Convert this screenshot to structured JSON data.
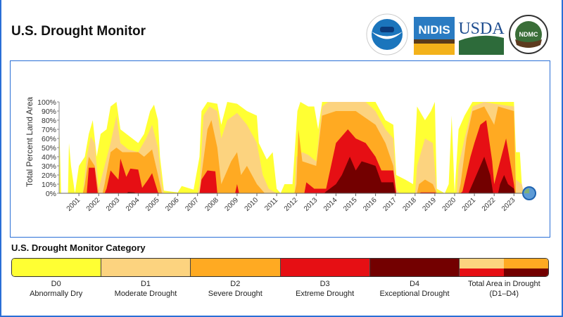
{
  "header": {
    "title": "U.S. Drought Monitor",
    "logos": [
      "NOAA",
      "NIDIS",
      "USDA",
      "NDMC"
    ]
  },
  "colors": {
    "D0": "#ffff33",
    "D1": "#fcd37f",
    "D2": "#ffaa22",
    "D3": "#e60f14",
    "D4": "#730000",
    "frame": "#2a6fd6"
  },
  "chart_data": {
    "type": "area",
    "ylabel": "Total Percent Land Area",
    "xlabel": "",
    "ylim": [
      0,
      100
    ],
    "xlim": [
      2000,
      2023.6
    ],
    "yticks": [
      "0%",
      "10%",
      "20%",
      "30%",
      "40%",
      "50%",
      "60%",
      "70%",
      "80%",
      "90%",
      "100%"
    ],
    "xticks": [
      "2001",
      "2002",
      "2003",
      "2004",
      "2005",
      "2006",
      "2007",
      "2008",
      "2009",
      "2010",
      "2011",
      "2012",
      "2013",
      "2014",
      "2015",
      "2016",
      "2017",
      "2018",
      "2019",
      "2020",
      "2021",
      "2022",
      "2023"
    ],
    "grid": false,
    "stacking": "cumulative (each category includes more severe ones)",
    "series": [
      {
        "name": "D0",
        "points": [
          [
            2000,
            80
          ],
          [
            2000.1,
            0
          ],
          [
            2000.45,
            0
          ],
          [
            2000.5,
            55
          ],
          [
            2000.6,
            30
          ],
          [
            2000.8,
            0
          ],
          [
            2001,
            30
          ],
          [
            2001.3,
            40
          ],
          [
            2001.5,
            65
          ],
          [
            2001.7,
            80
          ],
          [
            2001.9,
            40
          ],
          [
            2002.1,
            65
          ],
          [
            2002.4,
            70
          ],
          [
            2002.6,
            95
          ],
          [
            2002.9,
            100
          ],
          [
            2003.1,
            70
          ],
          [
            2003.4,
            65
          ],
          [
            2003.7,
            60
          ],
          [
            2004,
            55
          ],
          [
            2004.3,
            65
          ],
          [
            2004.6,
            90
          ],
          [
            2004.8,
            97
          ],
          [
            2005,
            80
          ],
          [
            2005.1,
            40
          ],
          [
            2005.3,
            3
          ],
          [
            2005.6,
            2
          ],
          [
            2006,
            1
          ],
          [
            2006.2,
            8
          ],
          [
            2006.5,
            6
          ],
          [
            2006.8,
            4
          ],
          [
            2007.1,
            40
          ],
          [
            2007.2,
            90
          ],
          [
            2007.5,
            100
          ],
          [
            2008,
            98
          ],
          [
            2008.2,
            75
          ],
          [
            2008.5,
            100
          ],
          [
            2009,
            98
          ],
          [
            2009.5,
            90
          ],
          [
            2010,
            85
          ],
          [
            2010.1,
            55
          ],
          [
            2010.5,
            37
          ],
          [
            2010.8,
            45
          ],
          [
            2011,
            5
          ],
          [
            2011.2,
            0
          ],
          [
            2011.4,
            10
          ],
          [
            2011.8,
            10
          ],
          [
            2012.05,
            90
          ],
          [
            2012.2,
            100
          ],
          [
            2012.6,
            95
          ],
          [
            2012.9,
            95
          ],
          [
            2013.1,
            70
          ],
          [
            2013.3,
            100
          ],
          [
            2016,
            100
          ],
          [
            2016.5,
            80
          ],
          [
            2016.9,
            75
          ],
          [
            2017.05,
            20
          ],
          [
            2017.5,
            15
          ],
          [
            2017.9,
            10
          ],
          [
            2018.1,
            95
          ],
          [
            2018.5,
            80
          ],
          [
            2018.8,
            90
          ],
          [
            2019,
            100
          ],
          [
            2019.1,
            5
          ],
          [
            2019.5,
            0
          ],
          [
            2019.7,
            10
          ],
          [
            2019.85,
            85
          ],
          [
            2020,
            0
          ],
          [
            2020.2,
            70
          ],
          [
            2020.5,
            85
          ],
          [
            2020.9,
            100
          ],
          [
            2023,
            100
          ],
          [
            2023.1,
            45
          ],
          [
            2023.3,
            45
          ],
          [
            2023.4,
            10
          ],
          [
            2023.5,
            0
          ]
        ]
      },
      {
        "name": "D1",
        "points": [
          [
            2001.2,
            0
          ],
          [
            2001.4,
            40
          ],
          [
            2001.6,
            62
          ],
          [
            2001.8,
            55
          ],
          [
            2002,
            5
          ],
          [
            2002.3,
            30
          ],
          [
            2002.6,
            55
          ],
          [
            2002.9,
            85
          ],
          [
            2003.1,
            55
          ],
          [
            2003.5,
            48
          ],
          [
            2004,
            45
          ],
          [
            2004.4,
            60
          ],
          [
            2004.7,
            75
          ],
          [
            2005,
            50
          ],
          [
            2005.2,
            10
          ],
          [
            2005.3,
            0
          ],
          [
            2007,
            0
          ],
          [
            2007.1,
            10
          ],
          [
            2007.3,
            85
          ],
          [
            2007.6,
            95
          ],
          [
            2008,
            90
          ],
          [
            2008.2,
            60
          ],
          [
            2008.5,
            80
          ],
          [
            2009,
            88
          ],
          [
            2009.5,
            75
          ],
          [
            2010,
            55
          ],
          [
            2010.3,
            20
          ],
          [
            2010.6,
            5
          ],
          [
            2011,
            0
          ],
          [
            2011.9,
            0
          ],
          [
            2012,
            40
          ],
          [
            2012.3,
            45
          ],
          [
            2012.6,
            42
          ],
          [
            2013,
            35
          ],
          [
            2013.3,
            95
          ],
          [
            2013.6,
            100
          ],
          [
            2015.5,
            100
          ],
          [
            2016,
            90
          ],
          [
            2016.5,
            70
          ],
          [
            2016.9,
            60
          ],
          [
            2017.05,
            5
          ],
          [
            2017.2,
            0
          ],
          [
            2018,
            0
          ],
          [
            2018.1,
            30
          ],
          [
            2018.5,
            60
          ],
          [
            2018.9,
            55
          ],
          [
            2019.1,
            0
          ],
          [
            2020.1,
            0
          ],
          [
            2020.2,
            30
          ],
          [
            2020.5,
            60
          ],
          [
            2020.9,
            95
          ],
          [
            2021.5,
            100
          ],
          [
            2022,
            98
          ],
          [
            2023,
            95
          ],
          [
            2023.1,
            15
          ],
          [
            2023.4,
            10
          ],
          [
            2023.5,
            0
          ]
        ]
      },
      {
        "name": "D2",
        "points": [
          [
            2001.2,
            0
          ],
          [
            2001.3,
            10
          ],
          [
            2001.5,
            40
          ],
          [
            2001.8,
            30
          ],
          [
            2002,
            0
          ],
          [
            2002.2,
            0
          ],
          [
            2002.3,
            10
          ],
          [
            2002.6,
            45
          ],
          [
            2002.9,
            50
          ],
          [
            2003.2,
            45
          ],
          [
            2004,
            45
          ],
          [
            2004.3,
            40
          ],
          [
            2004.7,
            48
          ],
          [
            2005,
            20
          ],
          [
            2005.2,
            0
          ],
          [
            2007.1,
            0
          ],
          [
            2007.2,
            20
          ],
          [
            2007.5,
            70
          ],
          [
            2007.7,
            80
          ],
          [
            2008,
            50
          ],
          [
            2008.2,
            10
          ],
          [
            2008.7,
            35
          ],
          [
            2009,
            45
          ],
          [
            2009.2,
            20
          ],
          [
            2009.5,
            30
          ],
          [
            2010,
            10
          ],
          [
            2010.4,
            0
          ],
          [
            2011.9,
            0
          ],
          [
            2012,
            10
          ],
          [
            2012.1,
            70
          ],
          [
            2012.3,
            35
          ],
          [
            2013,
            30
          ],
          [
            2013.3,
            85
          ],
          [
            2014,
            90
          ],
          [
            2015,
            90
          ],
          [
            2016,
            75
          ],
          [
            2016.5,
            55
          ],
          [
            2016.9,
            30
          ],
          [
            2017.05,
            0
          ],
          [
            2018.1,
            0
          ],
          [
            2018.2,
            10
          ],
          [
            2018.5,
            15
          ],
          [
            2018.9,
            10
          ],
          [
            2019.1,
            0
          ],
          [
            2020.2,
            0
          ],
          [
            2020.3,
            10
          ],
          [
            2020.6,
            60
          ],
          [
            2020.9,
            90
          ],
          [
            2021.5,
            95
          ],
          [
            2022,
            75
          ],
          [
            2022.2,
            95
          ],
          [
            2023,
            90
          ],
          [
            2023.1,
            0
          ]
        ]
      },
      {
        "name": "D3",
        "points": [
          [
            2001.4,
            0
          ],
          [
            2001.5,
            28
          ],
          [
            2001.8,
            28
          ],
          [
            2001.95,
            0
          ],
          [
            2002.3,
            0
          ],
          [
            2002.4,
            5
          ],
          [
            2002.6,
            25
          ],
          [
            2003,
            15
          ],
          [
            2003.1,
            38
          ],
          [
            2003.4,
            18
          ],
          [
            2003.6,
            27
          ],
          [
            2004,
            26
          ],
          [
            2004.2,
            6
          ],
          [
            2004.5,
            15
          ],
          [
            2004.7,
            22
          ],
          [
            2005,
            1
          ],
          [
            2005.1,
            0
          ],
          [
            2007.1,
            0
          ],
          [
            2007.2,
            15
          ],
          [
            2007.5,
            25
          ],
          [
            2007.9,
            24
          ],
          [
            2008,
            0
          ],
          [
            2008.9,
            0
          ],
          [
            2009,
            10
          ],
          [
            2009.1,
            0
          ],
          [
            2012.4,
            0
          ],
          [
            2012.5,
            12
          ],
          [
            2012.9,
            5
          ],
          [
            2013.5,
            5
          ],
          [
            2013.7,
            25
          ],
          [
            2014,
            55
          ],
          [
            2014.6,
            70
          ],
          [
            2015,
            60
          ],
          [
            2015.5,
            55
          ],
          [
            2016,
            40
          ],
          [
            2016.3,
            25
          ],
          [
            2016.9,
            25
          ],
          [
            2017.05,
            0
          ],
          [
            2018.2,
            0
          ],
          [
            2018.3,
            1
          ],
          [
            2019,
            1
          ],
          [
            2019.1,
            0
          ],
          [
            2020.3,
            0
          ],
          [
            2020.4,
            2
          ],
          [
            2020.8,
            40
          ],
          [
            2021,
            55
          ],
          [
            2021.3,
            75
          ],
          [
            2021.6,
            80
          ],
          [
            2021.9,
            35
          ],
          [
            2022,
            10
          ],
          [
            2022.3,
            35
          ],
          [
            2022.6,
            60
          ],
          [
            2023,
            10
          ],
          [
            2023.05,
            0
          ]
        ]
      },
      {
        "name": "D4",
        "points": [
          [
            2003.4,
            0
          ],
          [
            2003.5,
            1.5
          ],
          [
            2003.8,
            1
          ],
          [
            2003.9,
            0
          ],
          [
            2013.4,
            0
          ],
          [
            2013.5,
            2
          ],
          [
            2014,
            10
          ],
          [
            2014.3,
            20
          ],
          [
            2014.7,
            40
          ],
          [
            2015,
            25
          ],
          [
            2015.3,
            35
          ],
          [
            2015.6,
            33
          ],
          [
            2016,
            30
          ],
          [
            2016.3,
            12
          ],
          [
            2016.9,
            12
          ],
          [
            2017,
            0
          ],
          [
            2020.7,
            0
          ],
          [
            2020.8,
            5
          ],
          [
            2021,
            15
          ],
          [
            2021.5,
            40
          ],
          [
            2021.8,
            20
          ],
          [
            2021.95,
            0
          ],
          [
            2022.2,
            0
          ],
          [
            2022.3,
            10
          ],
          [
            2022.5,
            20
          ],
          [
            2022.7,
            10
          ],
          [
            2023,
            5
          ],
          [
            2023.05,
            0
          ]
        ]
      }
    ]
  },
  "legend": {
    "title": "U.S. Drought Monitor Category",
    "items": [
      {
        "code": "D0",
        "label": "Abnormally Dry"
      },
      {
        "code": "D1",
        "label": "Moderate Drought"
      },
      {
        "code": "D2",
        "label": "Severe Drought"
      },
      {
        "code": "D3",
        "label": "Extreme Drought"
      },
      {
        "code": "D4",
        "label": "Exceptional Drought"
      },
      {
        "code": "Total Area in Drought",
        "label": "(D1–D4)"
      }
    ]
  }
}
